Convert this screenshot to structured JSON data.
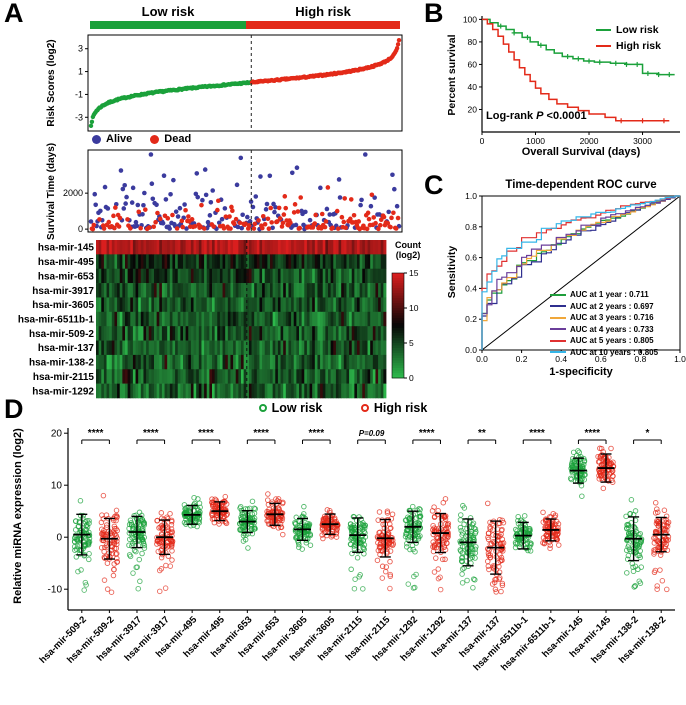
{
  "panel_labels": {
    "a": "A",
    "b": "B",
    "c": "C",
    "d": "D"
  },
  "colors": {
    "low_risk": "#1ba13b",
    "high_risk": "#e32a19",
    "alive": "#3b3b9e",
    "dead": "#e32a19",
    "heat_green": "#2db84b",
    "heat_black": "#060606",
    "heat_red": "#d91e1e"
  },
  "chart_data": [
    {
      "id": "risk_curve",
      "type": "scatter",
      "ylabel": "Risk Scores (log2)",
      "yticks": [
        3,
        1,
        -1,
        -3
      ],
      "ylim": [
        -4.2,
        4.2
      ],
      "n_patients": 330,
      "cutoff_fraction": 0.52,
      "score_range": [
        -3.6,
        3.7
      ],
      "group_header": {
        "low": "Low risk",
        "high": "High risk"
      },
      "groups": [
        {
          "name": "Low risk",
          "color": "#1ba13b"
        },
        {
          "name": "High risk",
          "color": "#e32a19"
        }
      ]
    },
    {
      "id": "survival_scatter",
      "type": "scatter",
      "ylabel": "Survival Time (days)",
      "yticks": [
        2000,
        0
      ],
      "ylim": [
        -160,
        4400
      ],
      "n_patients": 330,
      "legend": [
        {
          "name": "Alive",
          "color": "#3b3b9e"
        },
        {
          "name": "Dead",
          "color": "#e32a19"
        }
      ]
    },
    {
      "id": "mirna_heatmap",
      "type": "heatmap",
      "rows": [
        "hsa-mir-145",
        "hsa-mir-495",
        "hsa-mir-653",
        "hsa-mir-3917",
        "hsa-mir-3605",
        "hsa-mir-6511b-1",
        "hsa-mir-509-2",
        "hsa-mir-137",
        "hsa-mir-138-2",
        "hsa-mir-2115",
        "hsa-mir-1292"
      ],
      "row_mean_levels": [
        13.5,
        5.5,
        4.6,
        4.2,
        4.0,
        3.8,
        3.8,
        3.6,
        3.6,
        3.5,
        3.5
      ],
      "columns": 110,
      "colorbar": {
        "title": "Count (log2)",
        "ticks": [
          15,
          10,
          5,
          0
        ],
        "range": [
          0,
          15
        ]
      }
    },
    {
      "id": "kaplan_meier",
      "type": "line",
      "xlabel": "Overall Survival (days)",
      "ylabel": "Percent survival",
      "xticks": [
        0,
        1000,
        2000,
        3000
      ],
      "yticks": [
        20,
        40,
        60,
        80,
        100
      ],
      "xlim": [
        0,
        3700
      ],
      "ylim": [
        0,
        103
      ],
      "annotation": {
        "prefix": "Log-rank ",
        "p": "P",
        "value": " <0.0001"
      },
      "series": [
        {
          "name": "Low risk",
          "color": "#1ba13b",
          "points": [
            [
              0,
              100
            ],
            [
              150,
              97
            ],
            [
              300,
              94
            ],
            [
              450,
              91
            ],
            [
              600,
              88
            ],
            [
              750,
              84
            ],
            [
              900,
              80
            ],
            [
              1050,
              77
            ],
            [
              1200,
              73
            ],
            [
              1350,
              70
            ],
            [
              1500,
              67
            ],
            [
              1700,
              65
            ],
            [
              1900,
              63
            ],
            [
              2100,
              62
            ],
            [
              2400,
              61
            ],
            [
              2700,
              60
            ],
            [
              3000,
              52
            ],
            [
              3300,
              51
            ],
            [
              3600,
              51
            ]
          ],
          "censors": [
            350,
            600,
            850,
            1100,
            1600,
            1800,
            2000,
            2200,
            2500,
            2700,
            2900,
            3100,
            3300,
            3500
          ]
        },
        {
          "name": "High risk",
          "color": "#e32a19",
          "points": [
            [
              0,
              100
            ],
            [
              100,
              96
            ],
            [
              200,
              91
            ],
            [
              300,
              85
            ],
            [
              400,
              78
            ],
            [
              500,
              71
            ],
            [
              600,
              64
            ],
            [
              700,
              57
            ],
            [
              800,
              51
            ],
            [
              900,
              45
            ],
            [
              1000,
              39
            ],
            [
              1100,
              34
            ],
            [
              1250,
              29
            ],
            [
              1400,
              25
            ],
            [
              1600,
              22
            ],
            [
              1800,
              19
            ],
            [
              2000,
              16
            ],
            [
              2300,
              13
            ],
            [
              2500,
              10
            ],
            [
              3500,
              10
            ]
          ],
          "censors": [
            2600,
            3000,
            3400
          ]
        }
      ]
    },
    {
      "id": "roc",
      "type": "line",
      "title": "Time-dependent ROC curve",
      "xlabel": "1-specificity",
      "ylabel": "Sensitivity",
      "xticks": [
        0.0,
        0.2,
        0.4,
        0.6,
        0.8,
        1.0
      ],
      "yticks": [
        0.0,
        0.2,
        0.4,
        0.6,
        0.8,
        1.0
      ],
      "xlim": [
        0,
        1
      ],
      "ylim": [
        0,
        1
      ],
      "series": [
        {
          "label": "AUC at 1 year",
          "auc": 0.711,
          "display": "0.711",
          "color": "#1f9e3c"
        },
        {
          "label": "AUC at 2 years",
          "auc": 0.697,
          "display": "0.697",
          "color": "#2f2f8f"
        },
        {
          "label": "AUC at 3 years",
          "auc": 0.716,
          "display": "0.716",
          "color": "#f0a73a"
        },
        {
          "label": "AUC at 4 years",
          "auc": 0.733,
          "display": "0.733",
          "color": "#6a3d9a"
        },
        {
          "label": "AUC at 5 years",
          "auc": 0.805,
          "display": "0.805",
          "color": "#e03131"
        },
        {
          "label": "AUC at 10 years",
          "auc": 0.805,
          "display": "0.805",
          "color": "#35b6e8"
        }
      ]
    },
    {
      "id": "expression_strip",
      "type": "scatter",
      "ylabel": "Relative miRNA expression (log2)",
      "yticks": [
        20,
        10,
        0,
        -10
      ],
      "ylim": [
        -14,
        21
      ],
      "legend": [
        {
          "name": "Low risk",
          "color": "#1ba13b"
        },
        {
          "name": "High risk",
          "color": "#e32a19"
        }
      ],
      "pairs": [
        {
          "mirna": "hsa-mir-509-2",
          "low": {
            "mean": 0.5,
            "sd": 2.6
          },
          "high": {
            "mean": -0.3,
            "sd": 2.6
          },
          "sig": "****"
        },
        {
          "mirna": "hsa-mir-3917",
          "low": {
            "mean": 1.0,
            "sd": 2.0
          },
          "high": {
            "mean": 0.0,
            "sd": 2.2
          },
          "sig": "****"
        },
        {
          "mirna": "hsa-mir-495",
          "low": {
            "mean": 4.3,
            "sd": 1.2
          },
          "high": {
            "mean": 5.0,
            "sd": 1.2
          },
          "sig": "****"
        },
        {
          "mirna": "hsa-mir-653",
          "low": {
            "mean": 3.0,
            "sd": 1.4
          },
          "high": {
            "mean": 4.4,
            "sd": 1.4
          },
          "sig": "****"
        },
        {
          "mirna": "hsa-mir-3605",
          "low": {
            "mean": 1.5,
            "sd": 1.4
          },
          "high": {
            "mean": 2.5,
            "sd": 1.3
          },
          "sig": "****"
        },
        {
          "mirna": "hsa-mir-2115",
          "low": {
            "mean": 0.4,
            "sd": 2.2
          },
          "high": {
            "mean": -0.2,
            "sd": 2.4
          },
          "sig": "P=0.09"
        },
        {
          "mirna": "hsa-mir-1292",
          "low": {
            "mean": 2.0,
            "sd": 2.0
          },
          "high": {
            "mean": 0.8,
            "sd": 2.5
          },
          "sig": "****"
        },
        {
          "mirna": "hsa-mir-137",
          "low": {
            "mean": -1.0,
            "sd": 3.0
          },
          "high": {
            "mean": -2.0,
            "sd": 3.4
          },
          "sig": "**"
        },
        {
          "mirna": "hsa-mir-6511b-1",
          "low": {
            "mean": 0.3,
            "sd": 1.7
          },
          "high": {
            "mean": 1.4,
            "sd": 1.4
          },
          "sig": "****"
        },
        {
          "mirna": "hsa-mir-145",
          "low": {
            "mean": 12.8,
            "sd": 1.6
          },
          "high": {
            "mean": 13.3,
            "sd": 1.8
          },
          "sig": "****"
        },
        {
          "mirna": "hsa-mir-138-2",
          "low": {
            "mean": -0.3,
            "sd": 2.8
          },
          "high": {
            "mean": 0.5,
            "sd": 2.2
          },
          "sig": "*"
        }
      ]
    }
  ]
}
